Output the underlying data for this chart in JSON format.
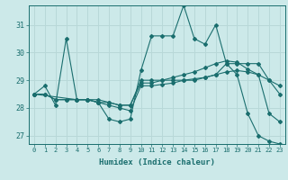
{
  "xlabel": "Humidex (Indice chaleur)",
  "xlim": [
    -0.5,
    23.5
  ],
  "ylim": [
    26.7,
    31.7
  ],
  "yticks": [
    27,
    28,
    29,
    30,
    31
  ],
  "xticks": [
    0,
    1,
    2,
    3,
    4,
    5,
    6,
    7,
    8,
    9,
    10,
    11,
    12,
    13,
    14,
    15,
    16,
    17,
    18,
    19,
    20,
    21,
    22,
    23
  ],
  "bg_color": "#cce9e9",
  "line_color": "#1a6e6e",
  "grid_color": "#b8d8d8",
  "line1_x": [
    0,
    1,
    2,
    3,
    4,
    5,
    6,
    7,
    8,
    9,
    10,
    11,
    12,
    13,
    14,
    15,
    16,
    17,
    18,
    19,
    20,
    21,
    22,
    23
  ],
  "line1_y": [
    28.5,
    28.8,
    28.1,
    30.5,
    28.3,
    28.3,
    28.2,
    27.6,
    27.5,
    27.6,
    29.35,
    30.6,
    30.6,
    30.6,
    31.7,
    30.5,
    30.3,
    31.0,
    29.6,
    29.2,
    27.8,
    27.0,
    26.8,
    26.7
  ],
  "line2_x": [
    0,
    1,
    2,
    3,
    4,
    5,
    6,
    7,
    8,
    9,
    10,
    11,
    12,
    13,
    14,
    15,
    16,
    17,
    18,
    19,
    20,
    21,
    22,
    23
  ],
  "line2_y": [
    28.5,
    28.5,
    28.3,
    28.3,
    28.3,
    28.3,
    28.3,
    28.2,
    28.1,
    28.1,
    28.9,
    28.9,
    29.0,
    29.1,
    29.2,
    29.3,
    29.45,
    29.6,
    29.7,
    29.65,
    29.4,
    29.2,
    29.0,
    28.8
  ],
  "line3_x": [
    0,
    4,
    5,
    6,
    7,
    8,
    9,
    10,
    11,
    12,
    13,
    14,
    15,
    16,
    17,
    18,
    19,
    20,
    21,
    22,
    23
  ],
  "line3_y": [
    28.5,
    28.3,
    28.3,
    28.2,
    28.2,
    28.1,
    28.1,
    29.0,
    29.0,
    29.0,
    29.0,
    29.0,
    29.0,
    29.1,
    29.2,
    29.6,
    29.6,
    29.6,
    29.6,
    29.0,
    28.5
  ],
  "line4_x": [
    0,
    1,
    2,
    3,
    4,
    5,
    6,
    7,
    8,
    9,
    10,
    11,
    12,
    13,
    14,
    15,
    16,
    17,
    18,
    19,
    20,
    21,
    22,
    23
  ],
  "line4_y": [
    28.5,
    28.5,
    28.3,
    28.3,
    28.3,
    28.3,
    28.2,
    28.1,
    28.0,
    27.9,
    28.8,
    28.8,
    28.85,
    28.9,
    29.0,
    29.05,
    29.1,
    29.2,
    29.3,
    29.35,
    29.3,
    29.2,
    27.8,
    27.5
  ]
}
